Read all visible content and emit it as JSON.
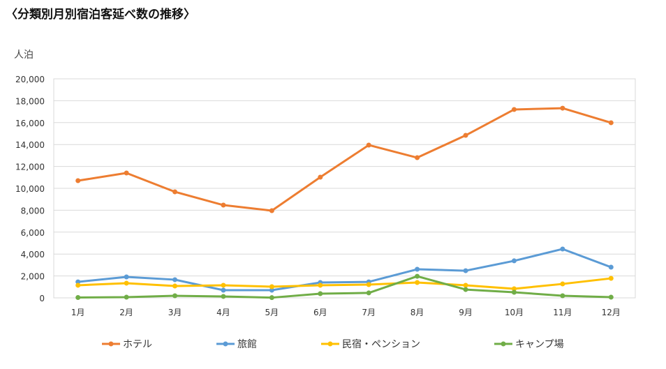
{
  "chart_data": {
    "type": "line",
    "title": "〈分類別月別宿泊客延べ数の推移〉",
    "ylabel": "人泊",
    "xlabel": "",
    "ylim": [
      0,
      20000
    ],
    "yticks": [
      "0",
      "2,000",
      "4,000",
      "6,000",
      "8,000",
      "10,000",
      "12,000",
      "14,000",
      "16,000",
      "18,000",
      "20,000"
    ],
    "ytick_values": [
      0,
      2000,
      4000,
      6000,
      8000,
      10000,
      12000,
      14000,
      16000,
      18000,
      20000
    ],
    "categories": [
      "1月",
      "2月",
      "3月",
      "4月",
      "5月",
      "6月",
      "7月",
      "8月",
      "9月",
      "10月",
      "11月",
      "12月"
    ],
    "grid": true,
    "legend_position": "bottom",
    "series": [
      {
        "name": "ホテル",
        "color": "#ED7D31",
        "values": [
          10700,
          11400,
          9680,
          8470,
          7960,
          11020,
          13950,
          12800,
          14840,
          17200,
          17320,
          15990
        ]
      },
      {
        "name": "旅館",
        "color": "#5B9BD5",
        "values": [
          1460,
          1910,
          1660,
          700,
          700,
          1400,
          1460,
          2610,
          2480,
          3380,
          4460,
          2800
        ]
      },
      {
        "name": "民宿・ペンション",
        "color": "#FFC000",
        "values": [
          1150,
          1340,
          1080,
          1150,
          1020,
          1150,
          1210,
          1400,
          1150,
          830,
          1270,
          1780
        ]
      },
      {
        "name": "キャンプ場",
        "color": "#70AD47",
        "values": [
          30,
          60,
          190,
          130,
          20,
          380,
          450,
          1970,
          760,
          510,
          190,
          60
        ]
      }
    ]
  }
}
